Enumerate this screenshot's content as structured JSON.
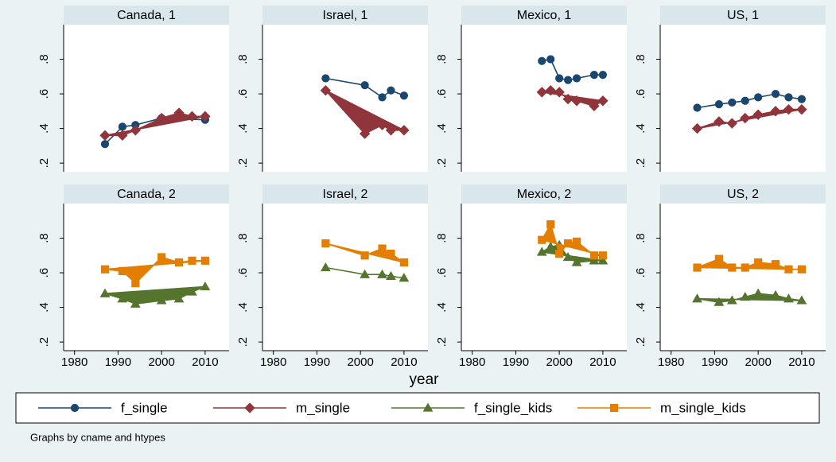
{
  "chart_data": [
    {
      "type": "line",
      "title": "Canada, 1",
      "xlim": [
        1977.5,
        2015.5
      ],
      "ylim": [
        0.15,
        1.0
      ],
      "yticks": [
        {
          "value": 0.2,
          "label": ".2"
        },
        {
          "value": 0.4,
          "label": ".4"
        },
        {
          "value": 0.6,
          "label": ".6"
        },
        {
          "value": 0.8,
          "label": ".8"
        }
      ],
      "series": [
        {
          "name": "f_single",
          "x": [
            1987,
            1991,
            1994,
            2000,
            2010
          ],
          "values": [
            0.31,
            0.41,
            0.42,
            0.46,
            0.45
          ],
          "fill": false
        },
        {
          "name": "m_single",
          "x": [
            1987,
            1991,
            1994,
            2000,
            2004,
            2007,
            2010
          ],
          "values": [
            0.36,
            0.36,
            0.39,
            0.46,
            0.49,
            0.47,
            0.47
          ],
          "fill": true
        }
      ]
    },
    {
      "type": "line",
      "title": "Israel, 1",
      "xlim": [
        1977.5,
        2015.5
      ],
      "ylim": [
        0.15,
        1.0
      ],
      "yticks": [
        {
          "value": 0.2,
          "label": ".2"
        },
        {
          "value": 0.4,
          "label": ".4"
        },
        {
          "value": 0.6,
          "label": ".6"
        },
        {
          "value": 0.8,
          "label": ".8"
        }
      ],
      "series": [
        {
          "name": "f_single",
          "x": [
            1992,
            2001,
            2005,
            2007,
            2010
          ],
          "values": [
            0.69,
            0.65,
            0.58,
            0.62,
            0.59
          ],
          "fill": false
        },
        {
          "name": "m_single",
          "x": [
            1992,
            2001,
            2005,
            2007,
            2010
          ],
          "values": [
            0.62,
            0.37,
            0.42,
            0.39,
            0.39
          ],
          "fill": true
        }
      ]
    },
    {
      "type": "line",
      "title": "Mexico, 1",
      "xlim": [
        1977.5,
        2015.5
      ],
      "ylim": [
        0.15,
        1.0
      ],
      "yticks": [
        {
          "value": 0.2,
          "label": ".2"
        },
        {
          "value": 0.4,
          "label": ".4"
        },
        {
          "value": 0.6,
          "label": ".6"
        },
        {
          "value": 0.8,
          "label": ".8"
        }
      ],
      "series": [
        {
          "name": "f_single",
          "x": [
            1996,
            1998,
            2000,
            2002,
            2004,
            2008,
            2010
          ],
          "values": [
            0.79,
            0.8,
            0.69,
            0.68,
            0.69,
            0.71,
            0.71
          ],
          "fill": false
        },
        {
          "name": "m_single",
          "x": [
            1996,
            1998,
            2000,
            2002,
            2004,
            2008,
            2010
          ],
          "values": [
            0.61,
            0.62,
            0.61,
            0.57,
            0.56,
            0.53,
            0.56
          ],
          "fill": true
        }
      ]
    },
    {
      "type": "line",
      "title": "US, 1",
      "xlim": [
        1977.5,
        2015.5
      ],
      "ylim": [
        0.15,
        1.0
      ],
      "yticks": [
        {
          "value": 0.2,
          "label": ".2"
        },
        {
          "value": 0.4,
          "label": ".4"
        },
        {
          "value": 0.6,
          "label": ".6"
        },
        {
          "value": 0.8,
          "label": ".8"
        }
      ],
      "series": [
        {
          "name": "f_single",
          "x": [
            1986,
            1991,
            1994,
            1997,
            2000,
            2004,
            2007,
            2010
          ],
          "values": [
            0.52,
            0.54,
            0.55,
            0.56,
            0.58,
            0.6,
            0.58,
            0.57
          ],
          "fill": false
        },
        {
          "name": "m_single",
          "x": [
            1986,
            1991,
            1994,
            1997,
            2000,
            2004,
            2007,
            2010
          ],
          "values": [
            0.4,
            0.44,
            0.43,
            0.46,
            0.48,
            0.5,
            0.51,
            0.51
          ],
          "fill": true
        }
      ]
    },
    {
      "type": "line",
      "title": "Canada, 2",
      "xlim": [
        1977.5,
        2015.5
      ],
      "xticks": [
        1980,
        1990,
        2000,
        2010
      ],
      "ylim": [
        0.15,
        1.0
      ],
      "yticks": [
        {
          "value": 0.2,
          "label": ".2"
        },
        {
          "value": 0.4,
          "label": ".4"
        },
        {
          "value": 0.6,
          "label": ".6"
        },
        {
          "value": 0.8,
          "label": ".8"
        }
      ],
      "series": [
        {
          "name": "f_single_kids",
          "x": [
            1987,
            1991,
            1994,
            2000,
            2004,
            2007,
            2010
          ],
          "values": [
            0.48,
            0.45,
            0.42,
            0.44,
            0.45,
            0.49,
            0.52
          ],
          "fill": true
        },
        {
          "name": "m_single_kids",
          "x": [
            1987,
            1991,
            1994,
            2000,
            2004,
            2007,
            2010
          ],
          "values": [
            0.62,
            0.61,
            0.54,
            0.69,
            0.66,
            0.67,
            0.67
          ],
          "fill": true
        }
      ]
    },
    {
      "type": "line",
      "title": "Israel, 2",
      "xlim": [
        1977.5,
        2015.5
      ],
      "xticks": [
        1980,
        1990,
        2000,
        2010
      ],
      "ylim": [
        0.15,
        1.0
      ],
      "yticks": [
        {
          "value": 0.2,
          "label": ".2"
        },
        {
          "value": 0.4,
          "label": ".4"
        },
        {
          "value": 0.6,
          "label": ".6"
        },
        {
          "value": 0.8,
          "label": ".8"
        }
      ],
      "series": [
        {
          "name": "f_single_kids",
          "x": [
            1992,
            2001,
            2005,
            2007,
            2010
          ],
          "values": [
            0.63,
            0.59,
            0.59,
            0.58,
            0.57
          ],
          "fill": false
        },
        {
          "name": "m_single_kids",
          "x": [
            1992,
            2001,
            2005,
            2007,
            2010
          ],
          "values": [
            0.77,
            0.7,
            0.74,
            0.71,
            0.66
          ],
          "fill": true
        }
      ]
    },
    {
      "type": "line",
      "title": "Mexico, 2",
      "xlim": [
        1977.5,
        2015.5
      ],
      "xticks": [
        1980,
        1990,
        2000,
        2010
      ],
      "ylim": [
        0.15,
        1.0
      ],
      "yticks": [
        {
          "value": 0.2,
          "label": ".2"
        },
        {
          "value": 0.4,
          "label": ".4"
        },
        {
          "value": 0.6,
          "label": ".6"
        },
        {
          "value": 0.8,
          "label": ".8"
        }
      ],
      "series": [
        {
          "name": "f_single_kids",
          "x": [
            1996,
            1998,
            2000,
            2002,
            2004,
            2008,
            2010
          ],
          "values": [
            0.72,
            0.75,
            0.76,
            0.69,
            0.66,
            0.67,
            0.67
          ],
          "fill": true
        },
        {
          "name": "m_single_kids",
          "x": [
            1996,
            1998,
            2000,
            2002,
            2004,
            2008,
            2010
          ],
          "values": [
            0.79,
            0.88,
            0.71,
            0.77,
            0.78,
            0.7,
            0.7
          ],
          "fill": true
        }
      ]
    },
    {
      "type": "line",
      "title": "US, 2",
      "xlim": [
        1977.5,
        2015.5
      ],
      "xticks": [
        1980,
        1990,
        2000,
        2010
      ],
      "ylim": [
        0.15,
        1.0
      ],
      "yticks": [
        {
          "value": 0.2,
          "label": ".2"
        },
        {
          "value": 0.4,
          "label": ".4"
        },
        {
          "value": 0.6,
          "label": ".6"
        },
        {
          "value": 0.8,
          "label": ".8"
        }
      ],
      "series": [
        {
          "name": "f_single_kids",
          "x": [
            1986,
            1991,
            1994,
            1997,
            2000,
            2004,
            2007,
            2010
          ],
          "values": [
            0.45,
            0.43,
            0.44,
            0.46,
            0.48,
            0.47,
            0.45,
            0.44
          ],
          "fill": true
        },
        {
          "name": "m_single_kids",
          "x": [
            1986,
            1991,
            1994,
            1997,
            2000,
            2004,
            2007,
            2010
          ],
          "values": [
            0.63,
            0.68,
            0.63,
            0.63,
            0.66,
            0.65,
            0.62,
            0.62
          ],
          "fill": true
        }
      ]
    }
  ],
  "xlabel": "year",
  "legend": [
    {
      "name": "f_single",
      "color": "#1a476f",
      "marker": "circle"
    },
    {
      "name": "m_single",
      "color": "#90353b",
      "marker": "diamond"
    },
    {
      "name": "f_single_kids",
      "color": "#55752f",
      "marker": "triangle"
    },
    {
      "name": "m_single_kids",
      "color": "#e37e00",
      "marker": "square"
    }
  ],
  "note": "Graphs by cname and htypes"
}
